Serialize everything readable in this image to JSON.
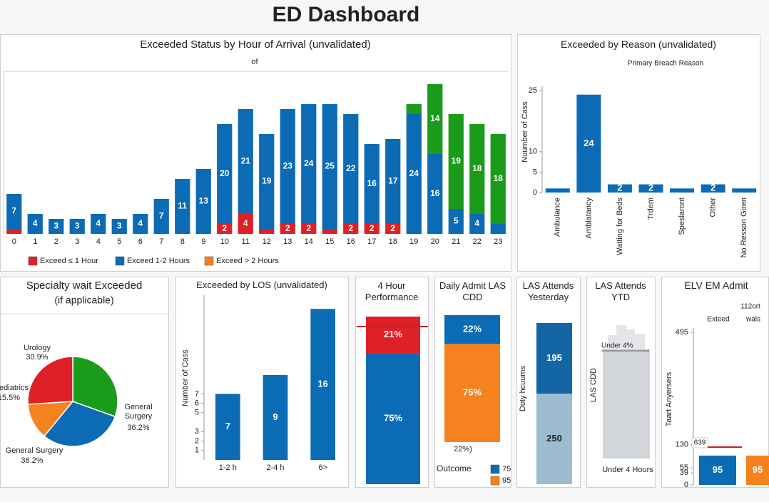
{
  "title": "ED Dashboard",
  "chart_data": [
    {
      "type": "stacked-bar",
      "title": "Exceeded Status by Hour of Arrival (unvalidated)",
      "caption": "of",
      "categories": [
        "0",
        "1",
        "2",
        "3",
        "4",
        "5",
        "6",
        "7",
        "8",
        "9",
        "10",
        "11",
        "12",
        "13",
        "14",
        "15",
        "16",
        "17",
        "18",
        "19",
        "20",
        "21",
        "22",
        "23"
      ],
      "series": [
        {
          "name": "Exceed ≤ 1 Hour",
          "color": "#e02027",
          "values": [
            1,
            0,
            0,
            0,
            0,
            0,
            0,
            0,
            0,
            0,
            2,
            4,
            1,
            2,
            2,
            1,
            2,
            2,
            2,
            0,
            0,
            0,
            0,
            0
          ],
          "value_labels": [
            null,
            null,
            null,
            null,
            null,
            null,
            null,
            null,
            null,
            null,
            "2",
            "4",
            null,
            "2",
            "2",
            null,
            "2",
            "2",
            "2",
            null,
            null,
            null,
            null,
            null
          ]
        },
        {
          "name": "Exceed 1-2 Hours",
          "color": "#0c6bb5",
          "values": [
            7,
            4,
            3,
            3,
            4,
            3,
            4,
            7,
            11,
            13,
            20,
            21,
            19,
            23,
            24,
            25,
            22,
            16,
            17,
            24,
            16,
            5,
            4,
            2
          ],
          "value_labels": [
            "7",
            "4",
            "3",
            "3",
            "4",
            "3",
            "4",
            "7",
            "11",
            "13",
            "20",
            "21",
            "19",
            "23",
            "24",
            "25",
            "22",
            "16",
            "17",
            "24",
            "16",
            "5",
            "4",
            null
          ]
        },
        {
          "name": "Exceed > 2 Hours",
          "color": "#f5821f",
          "bar_color": "#1a9c1a",
          "values": [
            0,
            0,
            0,
            0,
            0,
            0,
            0,
            0,
            0,
            0,
            0,
            0,
            0,
            0,
            0,
            0,
            0,
            0,
            0,
            2,
            14,
            19,
            18,
            18
          ],
          "value_labels": [
            null,
            null,
            null,
            null,
            null,
            null,
            null,
            null,
            null,
            null,
            null,
            null,
            null,
            null,
            null,
            null,
            null,
            null,
            null,
            null,
            "14",
            "19",
            "18",
            "18"
          ]
        }
      ],
      "legend": "bottom"
    },
    {
      "type": "bar",
      "title": "Exceeded by Reason (unvalidated)",
      "subtitle": "Primary Breach Reason",
      "ylabel": "Nuumber of Cass",
      "categories": [
        "Ambulance",
        "Amblatancy",
        "Watting for Beds",
        "Trdem",
        "Speslaront",
        "Other",
        "No Resson Giren"
      ],
      "values": [
        1,
        24,
        2,
        2,
        1,
        2,
        1
      ],
      "color": "#0c6bb5",
      "ylim": [
        0,
        25
      ],
      "yticks": [
        0,
        5,
        10,
        25
      ]
    },
    {
      "type": "pie",
      "title": "Specialty wait Exceeded",
      "subtitle": "(if applicable)",
      "categories": [
        "General Surgery",
        "General Surgery",
        "Pediatrics",
        "Urology"
      ],
      "values": [
        36.2,
        36.2,
        15.5,
        30.9
      ],
      "value_labels": [
        "36.2%",
        "36.2%",
        "15.5%",
        "30.9%"
      ],
      "colors": [
        "#1a9c1a",
        "#0c6bb5",
        "#f5821f",
        "#e02027"
      ]
    },
    {
      "type": "bar",
      "title": "Exceeded by LOS (unvalidated)",
      "ylabel": "Number of Cass",
      "categories": [
        "1-2 h",
        "2-4 h",
        "6>"
      ],
      "values": [
        7,
        9,
        16
      ],
      "color": "#0c6bb5",
      "ylim": [
        0,
        17
      ],
      "yticks": [
        1,
        2,
        3,
        5,
        6,
        7
      ]
    },
    {
      "type": "stacked-bar",
      "title": "4 Hour Performance",
      "series": [
        {
          "color": "#0c6bb5",
          "values": [
            75
          ],
          "value_labels": [
            "75%"
          ]
        },
        {
          "color": "#e02027",
          "values": [
            21
          ],
          "value_labels": [
            "21%"
          ]
        }
      ]
    },
    {
      "type": "stacked-bar",
      "title": "Daily Admit LAS CDD",
      "note": "22%)",
      "legend_title": "Outcome",
      "legend": "bottom",
      "series": [
        {
          "name": "95",
          "color": "#f5821f",
          "values": [
            75
          ],
          "value_labels": [
            "75%"
          ]
        },
        {
          "name": "75",
          "color": "#0c6bb5",
          "values": [
            22
          ],
          "value_labels": [
            "22%"
          ]
        }
      ]
    },
    {
      "type": "stacked-bar",
      "title": "LAS Attends Yesterday",
      "ylabel": "Doty hcuums",
      "series": [
        {
          "color": "#9dbccf",
          "values": [
            250
          ]
        },
        {
          "color": "#1465a3",
          "values": [
            195
          ]
        }
      ]
    },
    {
      "type": "bar",
      "title": "LAS Attends YTD",
      "ylabel": "LAS CDD",
      "annotation": "Under 4%",
      "xlabel": "Under 4 Hours"
    },
    {
      "type": "bar",
      "title": "ELV EM Admit",
      "subtitle": "112ort",
      "ylabel": "Taart Anyersers",
      "annotation": "639",
      "legend": "top",
      "ylim": [
        0,
        495
      ],
      "yticks": [
        0,
        39,
        55,
        130,
        495
      ],
      "series": [
        {
          "name": "Exteed",
          "color": "#0c6bb5",
          "values": [
            95
          ]
        },
        {
          "name": "wals",
          "color": "#f5821f",
          "values": [
            95
          ]
        }
      ]
    }
  ]
}
